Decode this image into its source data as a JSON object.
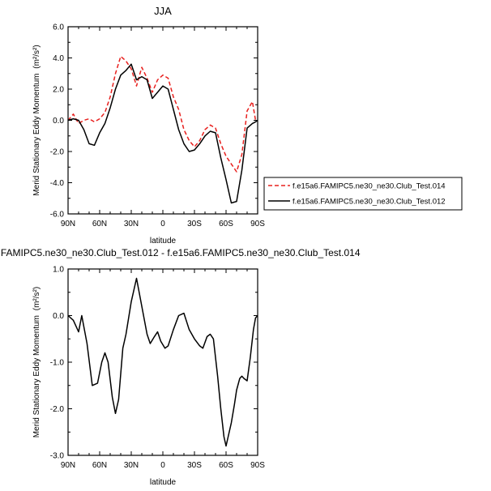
{
  "chart_data": [
    {
      "type": "line",
      "title": "JJA",
      "xlabel": "latitude",
      "ylabel": "Merid Stationary Eddy Momentum",
      "yunit": "(m²/s²)",
      "xlim": [
        90,
        -90
      ],
      "ylim": [
        -6.0,
        6.0
      ],
      "xticks": [
        90,
        60,
        30,
        0,
        -30,
        -60,
        -90
      ],
      "xtick_labels": [
        "90N",
        "60N",
        "30N",
        "0",
        "30S",
        "60S",
        "90S"
      ],
      "yticks": [
        6,
        4,
        2,
        0,
        -2,
        -4,
        -6
      ],
      "ytick_labels": [
        "6.0",
        "4.0",
        "2.0",
        "0.0",
        "-2.0",
        "-4.0",
        "-6.0"
      ],
      "grid": false,
      "legend": {
        "placement": "right",
        "box": true
      },
      "series": [
        {
          "name": "f.e15a6.FAMIPC5.ne30_ne30.Club_Test.014",
          "color": "#e8201e",
          "dash": "dashed",
          "x": [
            90,
            85,
            80,
            75,
            70,
            65,
            60,
            55,
            50,
            45,
            40,
            35,
            30,
            25,
            20,
            15,
            10,
            5,
            0,
            -5,
            -10,
            -15,
            -20,
            -25,
            -30,
            -35,
            -40,
            -45,
            -50,
            -55,
            -60,
            -65,
            -70,
            -75,
            -80,
            -85,
            -88,
            -90
          ],
          "y": [
            0.0,
            0.4,
            -0.2,
            0.0,
            0.1,
            -0.1,
            0.1,
            0.5,
            1.5,
            3.0,
            4.1,
            3.8,
            3.3,
            2.2,
            3.4,
            2.7,
            1.8,
            2.6,
            2.9,
            2.7,
            1.5,
            0.7,
            -0.6,
            -1.3,
            -1.7,
            -1.3,
            -0.6,
            -0.3,
            -0.5,
            -1.5,
            -2.3,
            -2.8,
            -3.3,
            -2.2,
            0.6,
            1.2,
            0.0,
            0.0
          ]
        },
        {
          "name": "f.e15a6.FAMIPC5.ne30_ne30.Club_Test.012",
          "color": "#000000",
          "dash": "solid",
          "x": [
            90,
            85,
            80,
            75,
            70,
            65,
            60,
            55,
            50,
            45,
            40,
            35,
            30,
            25,
            20,
            15,
            10,
            5,
            0,
            -5,
            -10,
            -15,
            -20,
            -25,
            -30,
            -35,
            -40,
            -45,
            -50,
            -55,
            -60,
            -65,
            -70,
            -75,
            -80,
            -85,
            -88,
            -90
          ],
          "y": [
            0.0,
            0.1,
            0.0,
            -0.6,
            -1.5,
            -1.6,
            -0.8,
            -0.2,
            0.8,
            2.0,
            2.9,
            3.2,
            3.6,
            2.6,
            2.8,
            2.6,
            1.4,
            1.8,
            2.2,
            2.0,
            0.7,
            -0.6,
            -1.5,
            -2.0,
            -1.9,
            -1.5,
            -1.0,
            -0.7,
            -0.8,
            -2.4,
            -3.8,
            -5.3,
            -5.2,
            -3.2,
            -0.5,
            -0.2,
            -0.1,
            0.0
          ]
        }
      ]
    },
    {
      "type": "line",
      "title": "f.e15a6.FAMIPC5.ne30_ne30.Club_Test.012 - f.e15a6.FAMIPC5.ne30_ne30.Club_Test.014",
      "xlabel": "latitude",
      "ylabel": "Merid Stationary Eddy Momentum",
      "yunit": "(m²/s²)",
      "xlim": [
        90,
        -90
      ],
      "ylim": [
        -3.0,
        1.0
      ],
      "xticks": [
        90,
        60,
        30,
        0,
        -30,
        -60,
        -90
      ],
      "xtick_labels": [
        "90N",
        "60N",
        "30N",
        "0",
        "30S",
        "60S",
        "90S"
      ],
      "yticks": [
        1,
        0,
        -1,
        -2,
        -3
      ],
      "ytick_labels": [
        "1.0",
        "0.0",
        "-1.0",
        "-2.0",
        "-3.0"
      ],
      "grid": false,
      "series": [
        {
          "color": "#000000",
          "dash": "solid",
          "x": [
            90,
            85,
            80,
            77,
            72,
            67,
            62,
            58,
            55,
            52,
            48,
            45,
            42,
            38,
            35,
            30,
            25,
            20,
            15,
            12,
            8,
            5,
            2,
            -2,
            -5,
            -10,
            -15,
            -20,
            -25,
            -30,
            -35,
            -38,
            -42,
            -45,
            -48,
            -52,
            -55,
            -58,
            -60,
            -62,
            -65,
            -68,
            -70,
            -73,
            -75,
            -77,
            -80,
            -83,
            -86,
            -88,
            -90
          ],
          "y": [
            0.0,
            -0.1,
            -0.35,
            0.0,
            -0.6,
            -1.5,
            -1.45,
            -1.0,
            -0.8,
            -1.0,
            -1.75,
            -2.1,
            -1.8,
            -0.7,
            -0.4,
            0.3,
            0.8,
            0.2,
            -0.4,
            -0.6,
            -0.45,
            -0.35,
            -0.55,
            -0.7,
            -0.65,
            -0.3,
            0.0,
            0.05,
            -0.3,
            -0.5,
            -0.65,
            -0.7,
            -0.45,
            -0.4,
            -0.5,
            -1.3,
            -2.0,
            -2.6,
            -2.8,
            -2.6,
            -2.3,
            -1.9,
            -1.6,
            -1.35,
            -1.3,
            -1.35,
            -1.4,
            -0.9,
            -0.3,
            -0.05,
            0.0
          ]
        }
      ]
    }
  ]
}
